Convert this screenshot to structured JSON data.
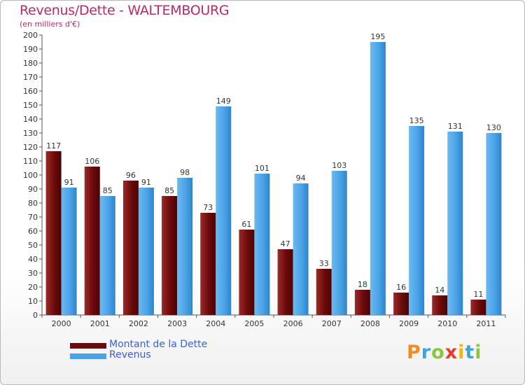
{
  "header": {
    "title": "Revenus/Dette - WALTEMBOURG",
    "subtitle": "(en milliers d'€)"
  },
  "legend": {
    "items": [
      {
        "label": "Montant de la Dette",
        "color": "#6b0a0a"
      },
      {
        "label": "Revenus",
        "color": "#4aa3e6"
      }
    ]
  },
  "logo": {
    "text": "Proxiti",
    "colors": [
      "#f28c1e",
      "#3aa7d8",
      "#8cc63f",
      "#e8392b",
      "#f2b705",
      "#3aa7d8",
      "#8cc63f"
    ]
  },
  "chart_data": {
    "type": "bar",
    "title": "Revenus/Dette - WALTEMBOURG",
    "subtitle": "(en milliers d'€)",
    "categories": [
      "2000",
      "2001",
      "2002",
      "2003",
      "2004",
      "2005",
      "2006",
      "2007",
      "2008",
      "2009",
      "2010",
      "2011"
    ],
    "series": [
      {
        "name": "Montant de la Dette",
        "color": "#6b0a0a",
        "values": [
          117,
          106,
          96,
          85,
          73,
          61,
          47,
          33,
          18,
          16,
          14,
          11
        ]
      },
      {
        "name": "Revenus",
        "color": "#4aa3e6",
        "values": [
          91,
          85,
          91,
          98,
          149,
          101,
          94,
          103,
          195,
          135,
          131,
          130
        ]
      }
    ],
    "ylim": [
      0,
      200
    ],
    "ytick_step": 10,
    "grid": false,
    "legend_position": "bottom-left"
  }
}
